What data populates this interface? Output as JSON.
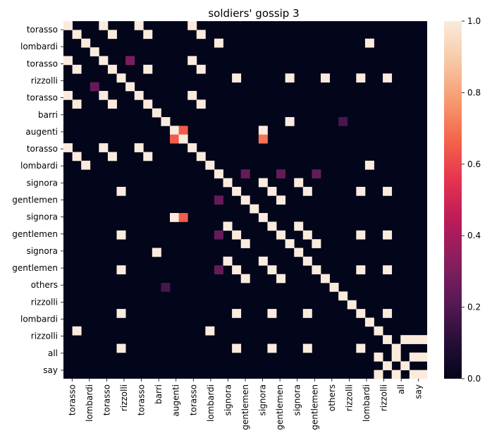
{
  "chart_data": {
    "type": "heatmap",
    "title": "soldiers' gossip 3",
    "labels": [
      "torasso",
      "lombardi",
      "torasso",
      "rizzolli",
      "torasso",
      "barri",
      "augenti",
      "torasso",
      "lombardi",
      "signora",
      "gentlemen",
      "signora",
      "gentlemen",
      "signora",
      "gentlemen",
      "others",
      "rizzolli",
      "lombardi",
      "rizzolli",
      "all",
      "say"
    ],
    "colorbar": {
      "min": 0.0,
      "max": 1.0,
      "ticks": [
        "0.0",
        "0.2",
        "0.4",
        "0.6",
        "0.8",
        "1.0"
      ]
    },
    "colormap": [
      "#03051a",
      "#2a0f39",
      "#5a1a57",
      "#8a1f5e",
      "#bc1b5a",
      "#e5334f",
      "#f4644a",
      "#f69a6f",
      "#f7c8a5",
      "#faebdd"
    ],
    "matrix_cols": 41,
    "matrix_rows": 41,
    "cells": [
      [
        0,
        0,
        1
      ],
      [
        0,
        4,
        1
      ],
      [
        0,
        8,
        1
      ],
      [
        0,
        14,
        1
      ],
      [
        1,
        1,
        1
      ],
      [
        1,
        5,
        1
      ],
      [
        1,
        9,
        1
      ],
      [
        1,
        15,
        1
      ],
      [
        2,
        2,
        1
      ],
      [
        2,
        17,
        1
      ],
      [
        2,
        34,
        1
      ],
      [
        3,
        3,
        1
      ],
      [
        4,
        0,
        1
      ],
      [
        4,
        4,
        1
      ],
      [
        4,
        7,
        0.3
      ],
      [
        4,
        14,
        1
      ],
      [
        5,
        1,
        1
      ],
      [
        5,
        5,
        1
      ],
      [
        5,
        9,
        1
      ],
      [
        5,
        15,
        1
      ],
      [
        6,
        6,
        1
      ],
      [
        6,
        19,
        1
      ],
      [
        6,
        25,
        1
      ],
      [
        6,
        29,
        1
      ],
      [
        6,
        33,
        1
      ],
      [
        6,
        36,
        1
      ],
      [
        7,
        7,
        1
      ],
      [
        7,
        3,
        0.25
      ],
      [
        8,
        0,
        1
      ],
      [
        8,
        4,
        1
      ],
      [
        8,
        8,
        1
      ],
      [
        8,
        14,
        1
      ],
      [
        9,
        1,
        1
      ],
      [
        9,
        5,
        1
      ],
      [
        9,
        9,
        1
      ],
      [
        9,
        15,
        1
      ],
      [
        10,
        10,
        1
      ],
      [
        11,
        11,
        1
      ],
      [
        11,
        25,
        1
      ],
      [
        11,
        31,
        0.18
      ],
      [
        12,
        12,
        1
      ],
      [
        12,
        13,
        0.65
      ],
      [
        12,
        22,
        1
      ],
      [
        13,
        12,
        0.65
      ],
      [
        13,
        13,
        1
      ],
      [
        13,
        22,
        0.7
      ],
      [
        14,
        0,
        1
      ],
      [
        14,
        4,
        1
      ],
      [
        14,
        8,
        1
      ],
      [
        14,
        14,
        1
      ],
      [
        15,
        1,
        1
      ],
      [
        15,
        5,
        1
      ],
      [
        15,
        9,
        1
      ],
      [
        15,
        15,
        1
      ],
      [
        16,
        2,
        1
      ],
      [
        16,
        16,
        1
      ],
      [
        16,
        34,
        1
      ],
      [
        17,
        17,
        1
      ],
      [
        17,
        20,
        0.25
      ],
      [
        17,
        24,
        0.25
      ],
      [
        17,
        28,
        0.25
      ],
      [
        18,
        18,
        1
      ],
      [
        18,
        22,
        1
      ],
      [
        18,
        26,
        1
      ],
      [
        19,
        6,
        1
      ],
      [
        19,
        19,
        1
      ],
      [
        19,
        23,
        1
      ],
      [
        19,
        27,
        1
      ],
      [
        19,
        33,
        1
      ],
      [
        19,
        36,
        1
      ],
      [
        20,
        17,
        0.25
      ],
      [
        20,
        20,
        1
      ],
      [
        20,
        24,
        1
      ],
      [
        21,
        21,
        1
      ],
      [
        22,
        12,
        1
      ],
      [
        22,
        13,
        0.65
      ],
      [
        22,
        22,
        1
      ],
      [
        23,
        18,
        1
      ],
      [
        23,
        23,
        1
      ],
      [
        23,
        26,
        1
      ],
      [
        24,
        6,
        1
      ],
      [
        24,
        17,
        0.25
      ],
      [
        24,
        19,
        1
      ],
      [
        24,
        24,
        1
      ],
      [
        24,
        27,
        1
      ],
      [
        24,
        33,
        1
      ],
      [
        24,
        36,
        1
      ],
      [
        25,
        20,
        1
      ],
      [
        25,
        25,
        1
      ],
      [
        25,
        28,
        1
      ],
      [
        26,
        10,
        1
      ],
      [
        26,
        26,
        1
      ],
      [
        27,
        18,
        1
      ],
      [
        27,
        22,
        1
      ],
      [
        27,
        27,
        1
      ],
      [
        28,
        6,
        1
      ],
      [
        28,
        17,
        0.25
      ],
      [
        28,
        19,
        1
      ],
      [
        28,
        23,
        1
      ],
      [
        28,
        28,
        1
      ],
      [
        28,
        33,
        1
      ],
      [
        28,
        36,
        1
      ],
      [
        29,
        20,
        1
      ],
      [
        29,
        24,
        1
      ],
      [
        29,
        29,
        1
      ],
      [
        30,
        11,
        0.18
      ],
      [
        30,
        30,
        1
      ],
      [
        31,
        31,
        1
      ],
      [
        32,
        32,
        1
      ],
      [
        33,
        6,
        1
      ],
      [
        33,
        19,
        1
      ],
      [
        33,
        23,
        1
      ],
      [
        33,
        27,
        1
      ],
      [
        33,
        33,
        1
      ],
      [
        33,
        36,
        1
      ],
      [
        34,
        34,
        1
      ],
      [
        35,
        1,
        1
      ],
      [
        35,
        16,
        1
      ],
      [
        35,
        35,
        1
      ],
      [
        36,
        36,
        1
      ],
      [
        36,
        38,
        1
      ],
      [
        36,
        39,
        1
      ],
      [
        36,
        40,
        1
      ],
      [
        37,
        6,
        1
      ],
      [
        37,
        19,
        1
      ],
      [
        37,
        23,
        1
      ],
      [
        37,
        27,
        1
      ],
      [
        37,
        33,
        1
      ],
      [
        37,
        37,
        1
      ],
      [
        38,
        35,
        1
      ],
      [
        38,
        37,
        1
      ],
      [
        38,
        39,
        1
      ],
      [
        38,
        40,
        1
      ],
      [
        39,
        36,
        1
      ],
      [
        39,
        38,
        1
      ],
      [
        40,
        35,
        1
      ],
      [
        40,
        37,
        1
      ],
      [
        40,
        39,
        1
      ],
      [
        40,
        40,
        1
      ]
    ]
  }
}
